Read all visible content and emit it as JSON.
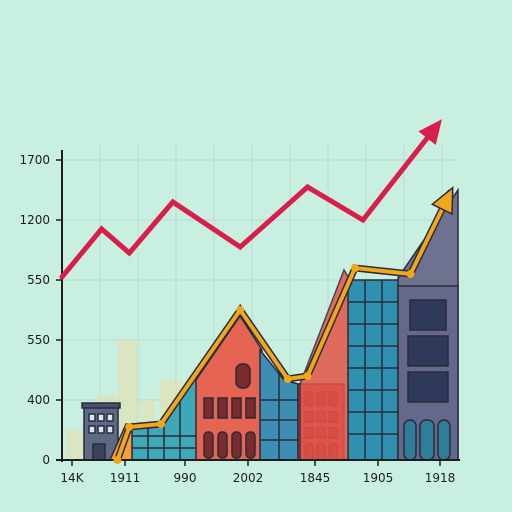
{
  "chart_data": {
    "type": "line",
    "title": "",
    "xlabel": "",
    "ylabel": "",
    "grid": true,
    "legend": "none",
    "y_tick_labels": [
      "0",
      "400",
      "550",
      "550",
      "1200",
      "1700"
    ],
    "x_tick_labels": [
      "14K",
      "1911",
      "990",
      "2002",
      "1845",
      "1905",
      "1918"
    ],
    "series": [
      {
        "color": "#d81e4b",
        "style": "arrow",
        "points": [
          [
            0.0,
            0.61
          ],
          [
            0.1,
            0.77
          ],
          [
            0.17,
            0.69
          ],
          [
            0.28,
            0.86
          ],
          [
            0.45,
            0.71
          ],
          [
            0.62,
            0.91
          ],
          [
            0.76,
            0.8
          ],
          [
            0.95,
            1.12
          ]
        ]
      },
      {
        "color": "#f2a71a",
        "style": "arrow",
        "points": [
          [
            0.14,
            0.0
          ],
          [
            0.17,
            0.11
          ],
          [
            0.25,
            0.12
          ],
          [
            0.45,
            0.5
          ],
          [
            0.57,
            0.27
          ],
          [
            0.62,
            0.28
          ],
          [
            0.74,
            0.64
          ],
          [
            0.88,
            0.62
          ],
          [
            0.98,
            0.89
          ]
        ]
      }
    ]
  },
  "colors": {
    "background": "#c9efe0",
    "grid": "#b7ddd0",
    "axis": "#1d1d1d",
    "red_line": "#d81e4b",
    "orange_line": "#f2a71a"
  }
}
